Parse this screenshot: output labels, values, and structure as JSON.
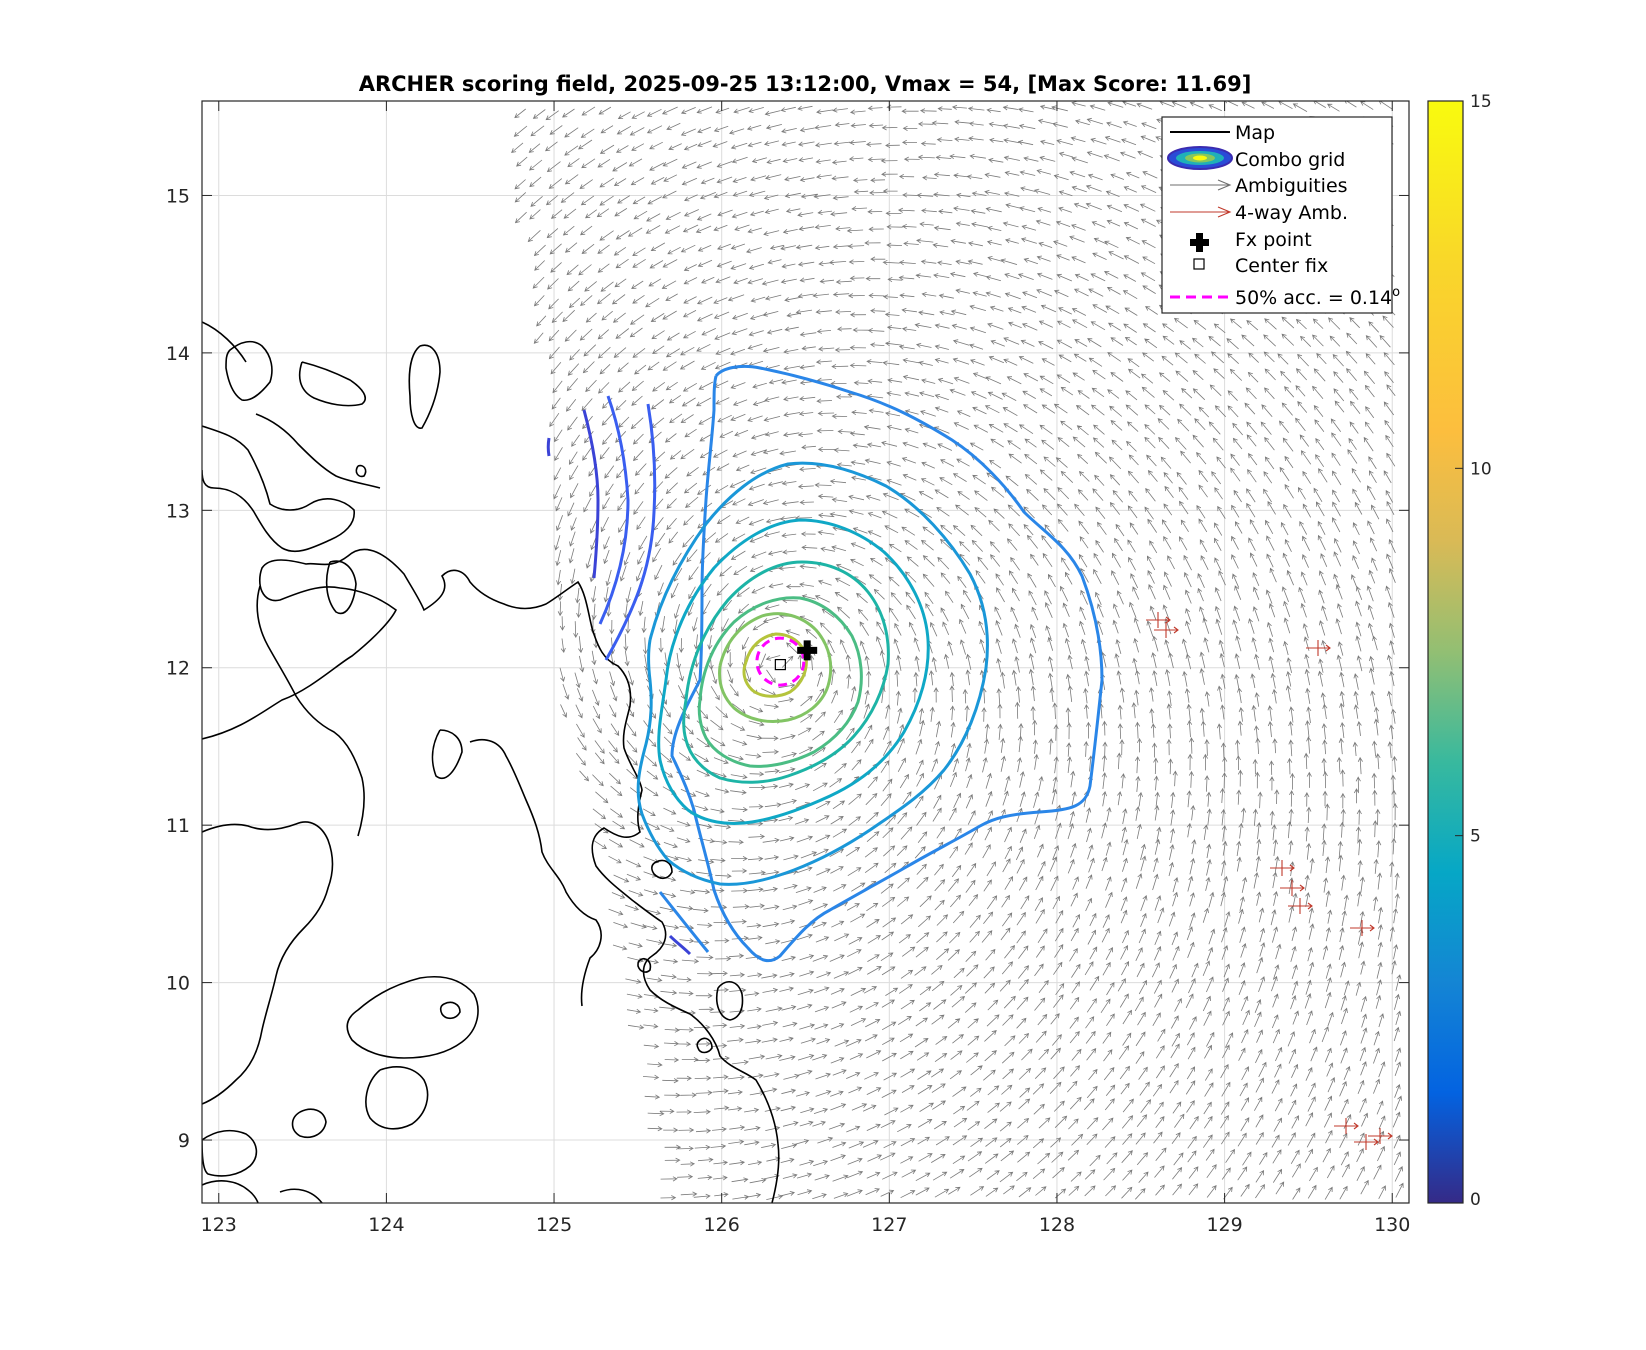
{
  "chart_data": {
    "type": "contour",
    "title": "ARCHER scoring field, 2025-09-25 13:12:00, Vmax = 54, [Max Score: 11.69]",
    "xlabel": "",
    "ylabel": "",
    "xlim": [
      122.9,
      130.1
    ],
    "ylim": [
      8.6,
      15.6
    ],
    "xticks": [
      "123",
      "124",
      "125",
      "126",
      "127",
      "128",
      "129",
      "130"
    ],
    "yticks": [
      "9",
      "10",
      "11",
      "12",
      "13",
      "14",
      "15"
    ],
    "grid": true,
    "legend_position": "top-right",
    "legend": [
      {
        "label": "Map",
        "symbol": "line",
        "color": "#000000"
      },
      {
        "label": "Combo grid",
        "symbol": "ellipse",
        "color": "#3b2bb0"
      },
      {
        "label": "Ambiguities",
        "symbol": "arrow",
        "color": "#6e6e6e"
      },
      {
        "label": "4-way Amb.",
        "symbol": "arrow",
        "color": "#c0392b"
      },
      {
        "label": "Fx point",
        "symbol": "cross",
        "color": "#000000"
      },
      {
        "label": "Center fix",
        "symbol": "square",
        "color": "#000000"
      },
      {
        "label": "50% acc. = 0.14",
        "superscript": "o",
        "symbol": "dashed",
        "color": "#ff00ff"
      }
    ],
    "colorbar": {
      "min": 0,
      "max": 15,
      "ticks": [
        "0",
        "5",
        "10",
        "15"
      ],
      "colormap": "parula"
    },
    "storm_center": {
      "lon": 126.35,
      "lat": 12.02
    },
    "fx_point": {
      "lon": 126.51,
      "lat": 12.11
    },
    "center_fix": {
      "lon": 126.35,
      "lat": 12.02
    },
    "acc_radius_deg": 0.14,
    "contour_levels": [
      {
        "level": 2.5,
        "color": "#3b43d6"
      },
      {
        "level": 3.5,
        "color": "#3a5ef0"
      },
      {
        "level": 4.5,
        "color": "#2a86e8"
      },
      {
        "level": 5.5,
        "color": "#1a97d8"
      },
      {
        "level": 6.5,
        "color": "#0fa8c6"
      },
      {
        "level": 7.5,
        "color": "#1db4a6"
      },
      {
        "level": 8.5,
        "color": "#4bbd84"
      },
      {
        "level": 9.5,
        "color": "#82c464"
      },
      {
        "level": 10.5,
        "color": "#b5c43c"
      }
    ]
  }
}
